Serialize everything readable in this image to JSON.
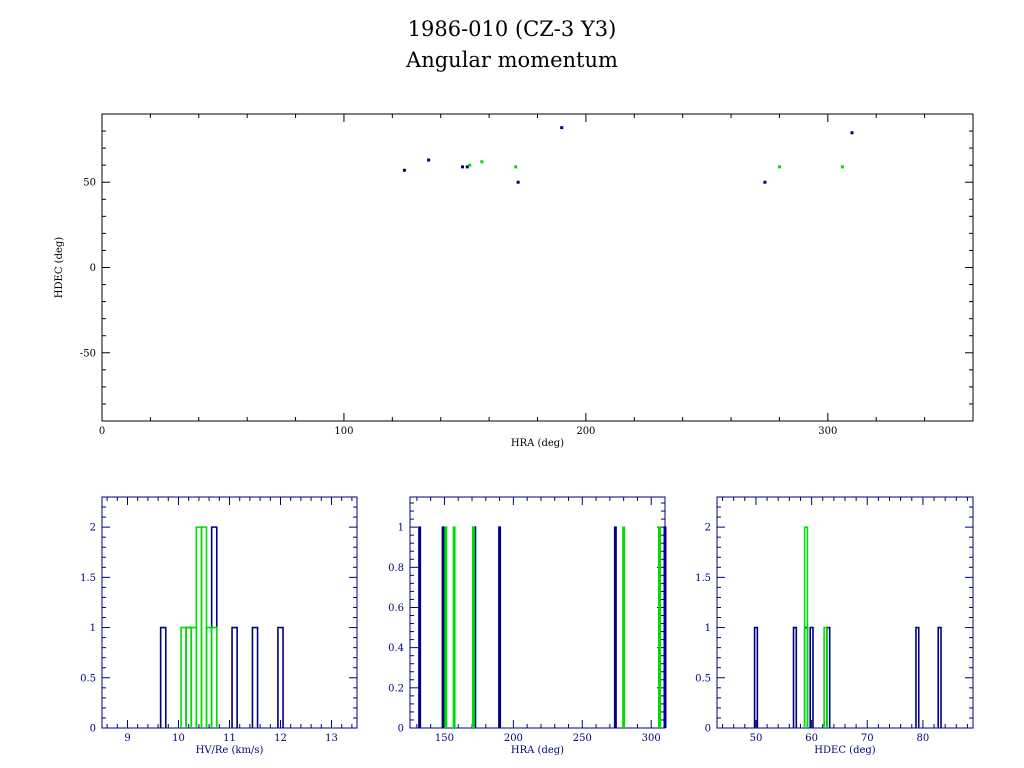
{
  "figure": {
    "title": "1986-010 (CZ-3 Y3)",
    "subtitle": "Angular momentum"
  },
  "colors": {
    "blue": "#000080",
    "green": "#00dd00",
    "axis": "#000000"
  },
  "chart_data": [
    {
      "type": "scatter",
      "xlabel": "HRA (deg)",
      "ylabel": "HDEC (deg)",
      "xlim": [
        0,
        360
      ],
      "ylim": [
        -90,
        90
      ],
      "xticks": [
        0,
        100,
        200,
        300
      ],
      "yticks": [
        -50,
        0,
        50
      ],
      "series": [
        {
          "color": "blue",
          "points": [
            [
              125,
              57
            ],
            [
              135,
              63
            ],
            [
              149,
              59
            ],
            [
              151,
              59
            ],
            [
              172,
              50
            ],
            [
              190,
              82
            ],
            [
              274,
              50
            ],
            [
              310,
              79
            ]
          ]
        },
        {
          "color": "green",
          "points": [
            [
              152,
              60
            ],
            [
              157,
              62
            ],
            [
              171,
              59
            ],
            [
              280,
              59
            ],
            [
              306,
              59
            ]
          ]
        }
      ]
    },
    {
      "type": "bar",
      "xlabel": "HV/Re (km/s)",
      "xlim": [
        8.5,
        13.5
      ],
      "ylim": [
        0,
        2.3
      ],
      "xticks": [
        9,
        10,
        11,
        12,
        13
      ],
      "yticks": [
        0,
        0.5,
        1,
        1.5,
        2
      ],
      "yticklabels": [
        "0",
        "0.5",
        "1",
        "1.5",
        "2"
      ],
      "bin_width": 0.1,
      "series": [
        {
          "color": "blue",
          "bins": [
            [
              9.7,
              1
            ],
            [
              10.2,
              1
            ],
            [
              10.7,
              2
            ],
            [
              11.1,
              1
            ],
            [
              11.5,
              1
            ],
            [
              12.0,
              1
            ]
          ]
        },
        {
          "color": "green",
          "bins": [
            [
              10.1,
              1
            ],
            [
              10.2,
              1
            ],
            [
              10.3,
              1
            ],
            [
              10.4,
              2
            ],
            [
              10.5,
              2
            ],
            [
              10.6,
              1
            ],
            [
              10.7,
              1
            ]
          ]
        }
      ]
    },
    {
      "type": "bar",
      "xlabel": "HRA (deg)",
      "xlim": [
        125,
        310
      ],
      "ylim": [
        0,
        1.15
      ],
      "xticks": [
        150,
        200,
        250,
        300
      ],
      "yticks": [
        0,
        0.2,
        0.4,
        0.6,
        0.8,
        1
      ],
      "yticklabels": [
        "0",
        "0.2",
        "0.4",
        "0.6",
        "0.8",
        "1"
      ],
      "bin_width": 1,
      "series": [
        {
          "color": "blue",
          "bins": [
            [
              132,
              1
            ],
            [
              149,
              1
            ],
            [
              172,
              1
            ],
            [
              190,
              1
            ],
            [
              274,
              1
            ],
            [
              310,
              1
            ]
          ]
        },
        {
          "color": "green",
          "bins": [
            [
              151,
              1
            ],
            [
              157,
              1
            ],
            [
              171,
              1
            ],
            [
              280,
              1
            ],
            [
              306,
              1
            ]
          ]
        }
      ]
    },
    {
      "type": "bar",
      "xlabel": "HDEC (deg)",
      "xlim": [
        43,
        89
      ],
      "ylim": [
        0,
        2.3
      ],
      "xticks": [
        50,
        60,
        70,
        80
      ],
      "yticks": [
        0,
        0.5,
        1,
        1.5,
        2
      ],
      "yticklabels": [
        "0",
        "0.5",
        "1",
        "1.5",
        "2"
      ],
      "bin_width": 0.5,
      "series": [
        {
          "color": "blue",
          "bins": [
            [
              50,
              1
            ],
            [
              57,
              1
            ],
            [
              59,
              1
            ],
            [
              60,
              1
            ],
            [
              63,
              1
            ],
            [
              79,
              1
            ],
            [
              83,
              1
            ]
          ]
        },
        {
          "color": "green",
          "bins": [
            [
              59,
              2
            ],
            [
              62.5,
              1
            ]
          ]
        }
      ]
    }
  ]
}
